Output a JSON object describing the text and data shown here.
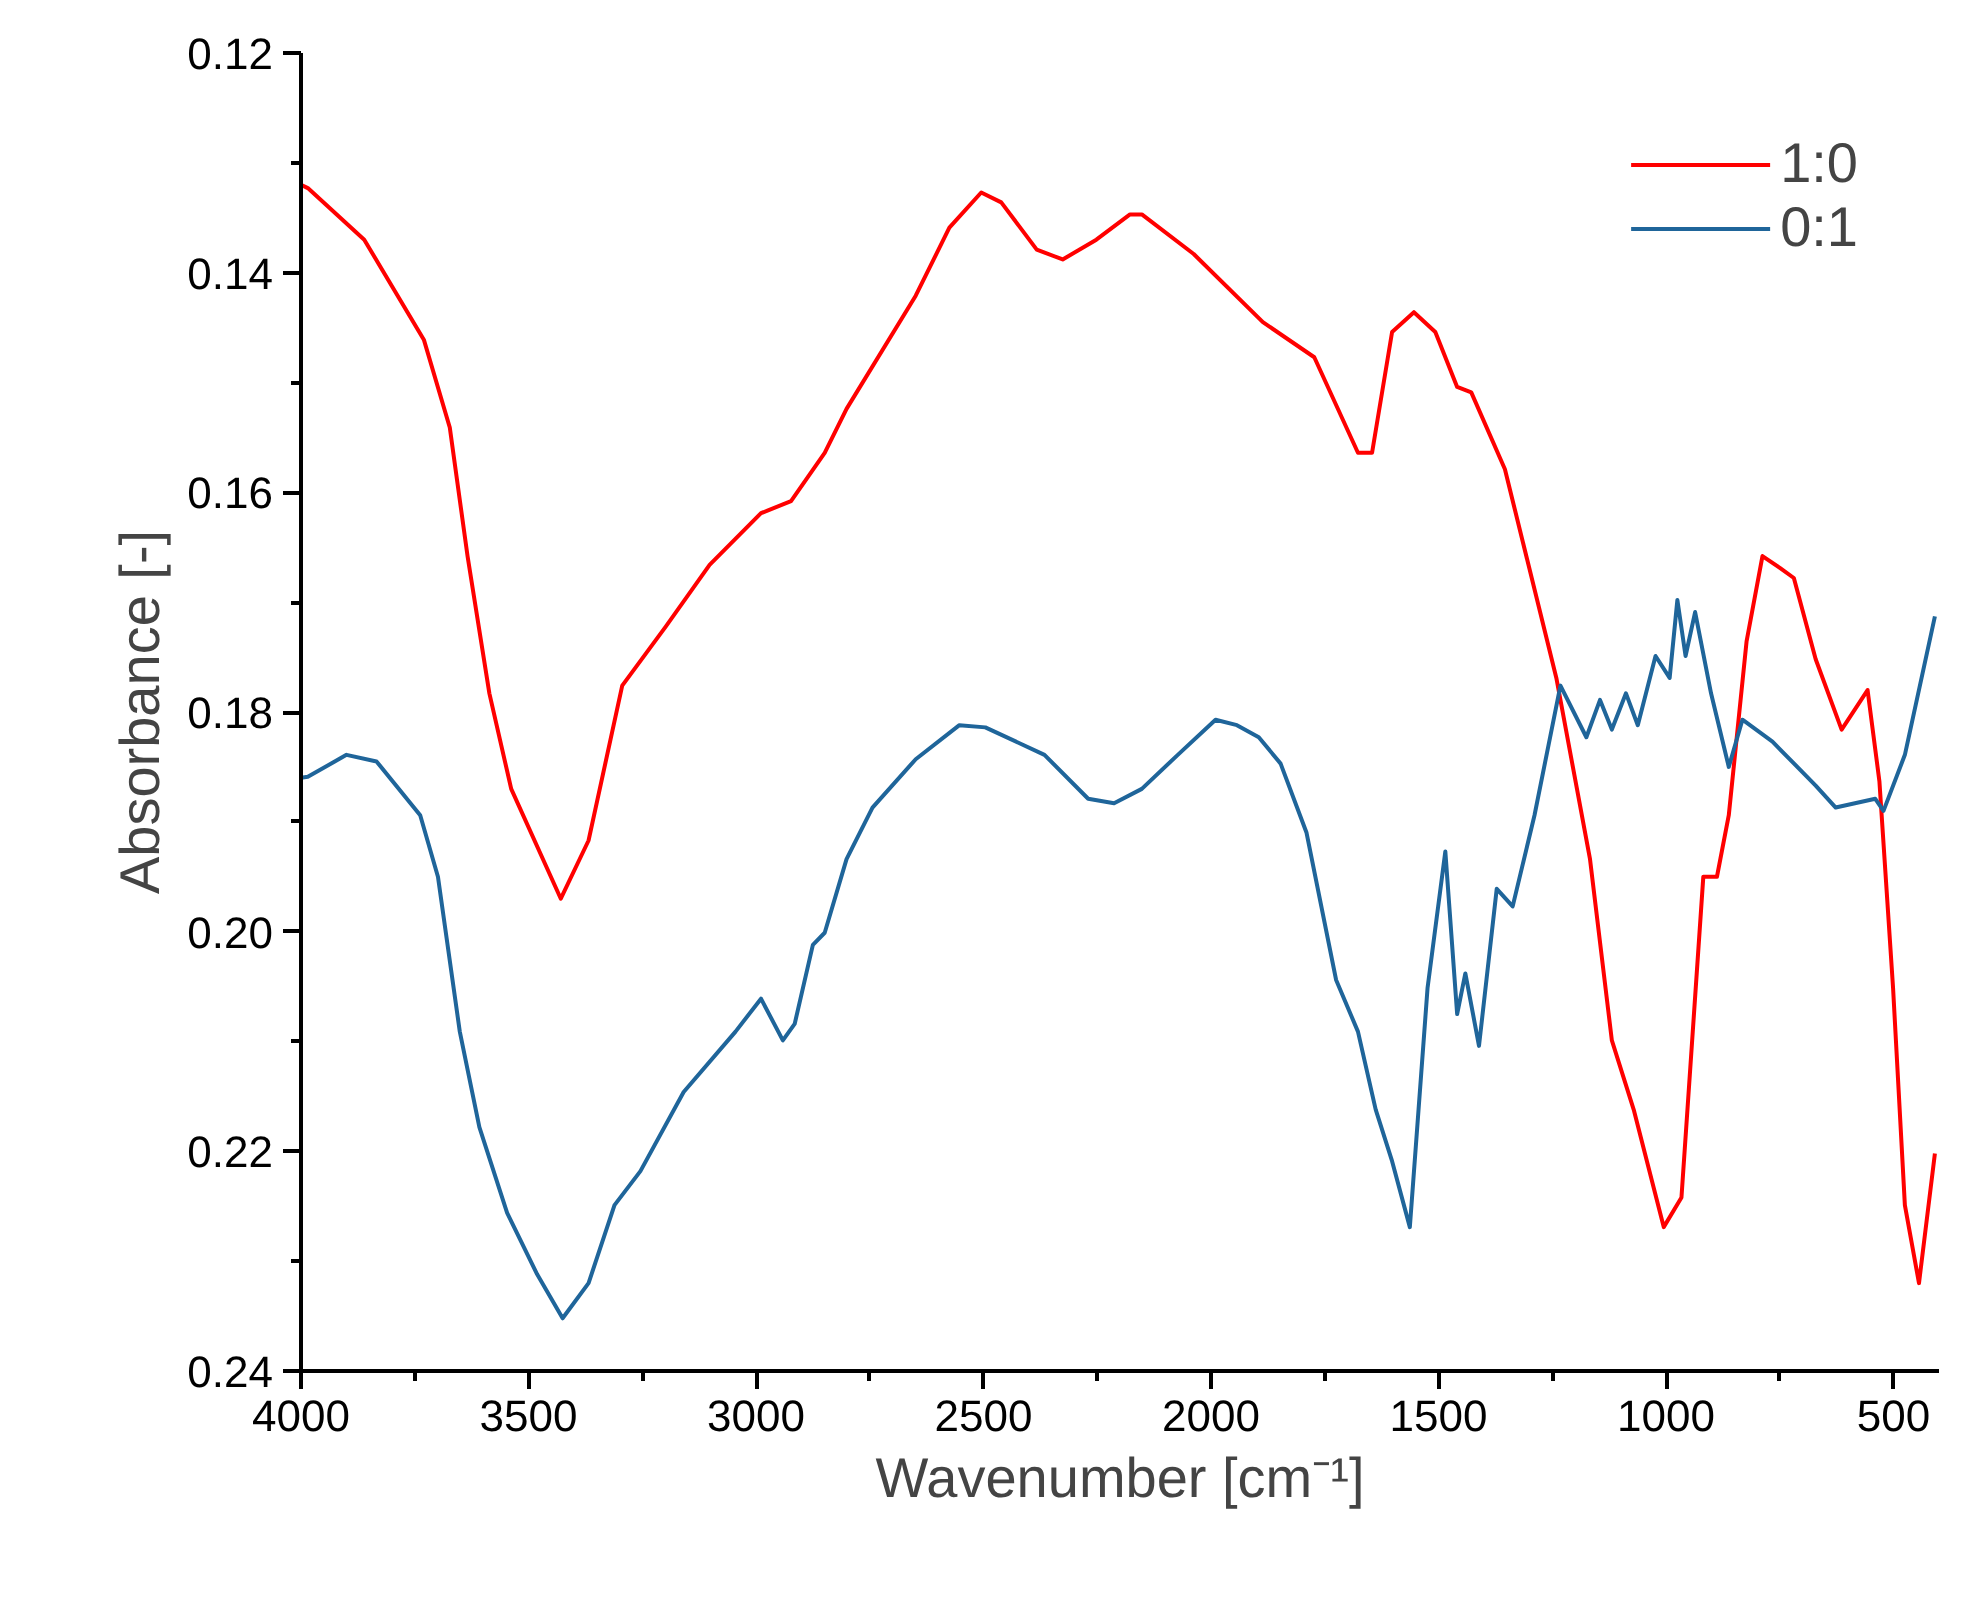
{
  "chart_data": {
    "type": "line",
    "xlabel": "Wavenumber [cm⁻¹]",
    "ylabel": "Absorbance [-]",
    "xlim": [
      4000,
      400
    ],
    "ylim": [
      0.24,
      0.12
    ],
    "xticks": [
      4000,
      {
        "value": 3750,
        "label": null
      },
      3500,
      {
        "value": 3250,
        "label": null
      },
      3000,
      {
        "value": 2750,
        "label": null
      },
      2500,
      {
        "value": 2250,
        "label": null
      },
      2000,
      {
        "value": 1750,
        "label": null
      },
      1500,
      {
        "value": 1250,
        "label": null
      },
      1000,
      {
        "value": 750,
        "label": null
      },
      500
    ],
    "yticks": [
      {
        "value": 0.12,
        "label": "0.12"
      },
      {
        "value": 0.13,
        "label": null
      },
      {
        "value": 0.14,
        "label": "0.14"
      },
      {
        "value": 0.15,
        "label": null
      },
      {
        "value": 0.16,
        "label": "0.16"
      },
      {
        "value": 0.17,
        "label": null
      },
      {
        "value": 0.18,
        "label": "0.18"
      },
      {
        "value": 0.19,
        "label": null
      },
      {
        "value": 0.2,
        "label": "0.20"
      },
      {
        "value": 0.21,
        "label": null
      },
      {
        "value": 0.22,
        "label": "0.22"
      },
      {
        "value": 0.23,
        "label": null
      },
      {
        "value": 0.24,
        "label": "0.24"
      }
    ],
    "grid": false,
    "legend": "top right",
    "marker": "none",
    "line_style": "solid",
    "series": [
      {
        "name": "1:0",
        "color": "#ff0000",
        "x": [
          4000,
          3985,
          3861,
          3730,
          3673,
          3634,
          3586,
          3538,
          3429,
          3368,
          3294,
          3198,
          3102,
          2989,
          2923,
          2849,
          2801,
          2649,
          2575,
          2505,
          2461,
          2383,
          2326,
          2252,
          2178,
          2152,
          2038,
          1886,
          1773,
          1677,
          1646,
          1602,
          1554,
          1507,
          1459,
          1428,
          1354,
          1241,
          1167,
          1119,
          1071,
          1005,
          966,
          918,
          888,
          862,
          823,
          788,
          749,
          719,
          671,
          614,
          557,
          531,
          501,
          475,
          444,
          409
        ],
        "values": [
          0.132,
          0.1323,
          0.137,
          0.1461,
          0.1541,
          0.1658,
          0.1783,
          0.187,
          0.197,
          0.1917,
          0.1776,
          0.1722,
          0.1666,
          0.1619,
          0.1608,
          0.1564,
          0.1524,
          0.1421,
          0.1359,
          0.1327,
          0.1336,
          0.1379,
          0.1388,
          0.137,
          0.1347,
          0.1347,
          0.1383,
          0.1445,
          0.1477,
          0.1564,
          0.1564,
          0.1454,
          0.1436,
          0.1454,
          0.1504,
          0.1509,
          0.1579,
          0.1769,
          0.1934,
          0.2099,
          0.2162,
          0.2269,
          0.2242,
          0.195,
          0.195,
          0.1894,
          0.1736,
          0.1658,
          0.1669,
          0.1678,
          0.1752,
          0.1816,
          0.178,
          0.1863,
          0.2051,
          0.2249,
          0.232,
          0.2202
        ]
      },
      {
        "name": "0:1",
        "color": "#1f659a",
        "x": [
          4000,
          3985,
          3900,
          3834,
          3738,
          3699,
          3651,
          3608,
          3547,
          3481,
          3425,
          3368,
          3311,
          3254,
          3159,
          3045,
          2989,
          2941,
          2915,
          2875,
          2849,
          2801,
          2744,
          2649,
          2553,
          2496,
          2366,
          2270,
          2213,
          2152,
          2073,
          1990,
          1943,
          1895,
          1847,
          1790,
          1725,
          1677,
          1638,
          1602,
          1563,
          1524,
          1485,
          1459,
          1441,
          1411,
          1372,
          1337,
          1289,
          1232,
          1175,
          1145,
          1119,
          1088,
          1062,
          1023,
          992,
          975,
          957,
          936,
          901,
          862,
          832,
          766,
          671,
          627,
          540,
          522,
          475,
          409
        ],
        "values": [
          0.186,
          0.1859,
          0.1839,
          0.1845,
          0.1894,
          0.195,
          0.2091,
          0.2178,
          0.2256,
          0.2312,
          0.2352,
          0.232,
          0.2249,
          0.2218,
          0.2146,
          0.2091,
          0.2061,
          0.2099,
          0.2084,
          0.2012,
          0.2001,
          0.1934,
          0.1887,
          0.1843,
          0.1812,
          0.1814,
          0.1839,
          0.1879,
          0.1883,
          0.187,
          0.1839,
          0.1807,
          0.1812,
          0.1823,
          0.1847,
          0.191,
          0.2044,
          0.2091,
          0.2162,
          0.2209,
          0.2269,
          0.2051,
          0.1927,
          0.2075,
          0.2038,
          0.2104,
          0.1961,
          0.1977,
          0.1894,
          0.1776,
          0.1823,
          0.1789,
          0.1816,
          0.1783,
          0.1812,
          0.1749,
          0.1769,
          0.1698,
          0.1749,
          0.1709,
          0.1783,
          0.185,
          0.1807,
          0.1827,
          0.1867,
          0.1887,
          0.1879,
          0.189,
          0.1839,
          0.1713
        ]
      }
    ]
  }
}
